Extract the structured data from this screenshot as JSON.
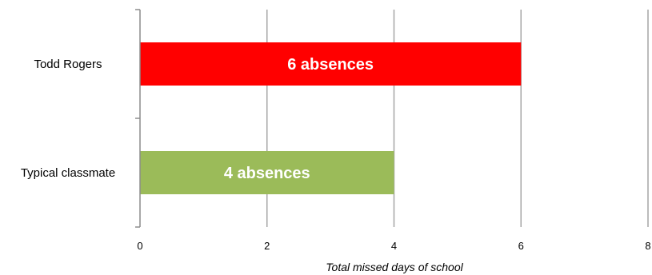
{
  "chart_data": {
    "type": "bar",
    "orientation": "horizontal",
    "categories": [
      "Todd Rogers",
      "Typical classmate"
    ],
    "values": [
      6,
      4
    ],
    "bar_labels": [
      "6 absences",
      "4 absences"
    ],
    "bar_colors": [
      "#ff0000",
      "#9bbb59"
    ],
    "xlabel": "Total missed days of school",
    "ylabel": "",
    "xlim": [
      0,
      8
    ],
    "x_ticks": [
      0,
      2,
      4,
      6,
      8
    ],
    "x_tick_labels": [
      "0",
      "2",
      "4",
      "6",
      "8"
    ],
    "grid": "vertical",
    "legend": "none"
  }
}
